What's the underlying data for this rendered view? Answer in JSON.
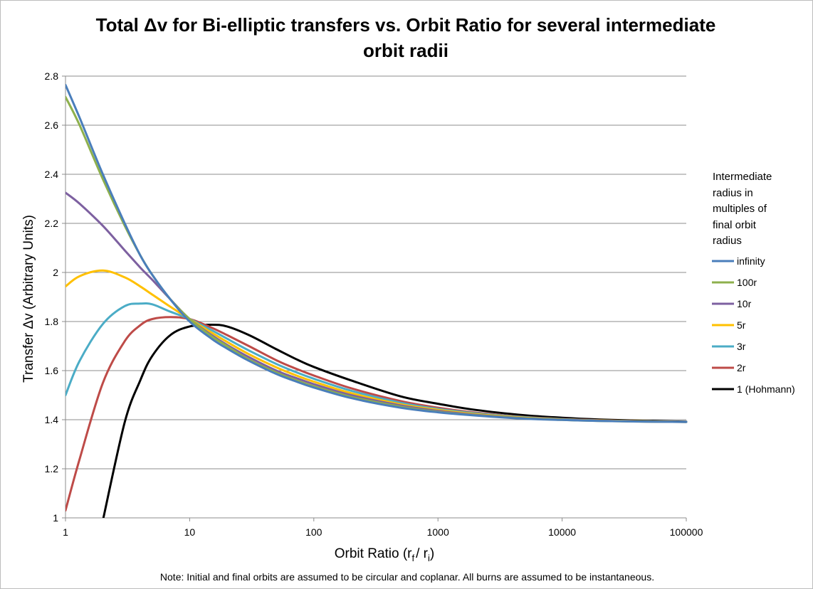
{
  "chart_data": {
    "type": "line",
    "title": "Total Δv for Bi-elliptic transfers vs. Orbit Ratio for several intermediate orbit radii",
    "title_lines": [
      "Total Δv for Bi-elliptic transfers vs. Orbit Ratio for several intermediate",
      "orbit radii"
    ],
    "xlabel": "Orbit Ratio (r_f / r_i)",
    "xlabel_parts": {
      "main": "Orbit Ratio (r",
      "sub1": "f",
      "mid": "/ r",
      "sub2": "i",
      "end": ")"
    },
    "ylabel": "Transfer Δv (Arbitrary Units)",
    "x_scale": "log",
    "xlim": [
      1,
      100000
    ],
    "ylim": [
      1,
      2.8
    ],
    "x_ticks": [
      "1",
      "10",
      "100",
      "1000",
      "10000",
      "100000"
    ],
    "y_ticks": [
      "1",
      "1.2",
      "1.4",
      "1.6",
      "1.8",
      "2",
      "2.2",
      "2.4",
      "2.6",
      "2.8"
    ],
    "grid": "horizontal",
    "legend_title_lines": [
      "Intermediate",
      "radius in",
      "multiples of",
      "final orbit",
      "radius"
    ],
    "legend_position": "right",
    "x_samples": [
      1,
      1.3,
      2,
      3,
      4,
      5,
      7,
      10,
      15,
      20,
      30,
      50,
      70,
      100,
      200,
      500,
      1000,
      2000,
      5000,
      10000,
      20000,
      50000,
      100000
    ],
    "series": [
      {
        "name": "infinity",
        "color": "#4a7ebb",
        "values": [
          2.764,
          2.63,
          2.4,
          2.2,
          2.07,
          1.99,
          1.89,
          1.8,
          1.73,
          1.69,
          1.64,
          1.586,
          1.558,
          1.531,
          1.488,
          1.449,
          1.43,
          1.417,
          1.404,
          1.399,
          1.395,
          1.392,
          1.391
        ]
      },
      {
        "name": "100r",
        "color": "#8eb04d",
        "values": [
          2.715,
          2.6,
          2.38,
          2.19,
          2.07,
          1.99,
          1.89,
          1.81,
          1.74,
          1.7,
          1.645,
          1.592,
          1.563,
          1.536,
          1.493,
          1.453,
          1.432,
          1.418,
          1.405,
          1.399,
          1.395,
          1.392,
          1.391
        ]
      },
      {
        "name": "10r",
        "color": "#7d60a0",
        "values": [
          2.325,
          2.28,
          2.19,
          2.09,
          2.02,
          1.97,
          1.89,
          1.81,
          1.745,
          1.705,
          1.655,
          1.6,
          1.572,
          1.545,
          1.5,
          1.458,
          1.436,
          1.42,
          1.406,
          1.4,
          1.396,
          1.392,
          1.391
        ]
      },
      {
        "name": "5r",
        "color": "#ffc000",
        "values": [
          1.943,
          1.985,
          2.008,
          1.98,
          1.943,
          1.91,
          1.86,
          1.81,
          1.755,
          1.717,
          1.667,
          1.613,
          1.583,
          1.555,
          1.508,
          1.463,
          1.44,
          1.423,
          1.408,
          1.401,
          1.397,
          1.393,
          1.391
        ]
      },
      {
        "name": "3r",
        "color": "#4bacc6",
        "values": [
          1.5,
          1.64,
          1.79,
          1.863,
          1.873,
          1.87,
          1.84,
          1.81,
          1.765,
          1.73,
          1.682,
          1.627,
          1.596,
          1.567,
          1.518,
          1.469,
          1.444,
          1.426,
          1.41,
          1.402,
          1.397,
          1.393,
          1.391
        ]
      },
      {
        "name": "2r",
        "color": "#be4b48",
        "values": [
          1.03,
          1.24,
          1.55,
          1.72,
          1.785,
          1.81,
          1.818,
          1.81,
          1.775,
          1.745,
          1.7,
          1.642,
          1.61,
          1.58,
          1.528,
          1.476,
          1.449,
          1.429,
          1.411,
          1.403,
          1.398,
          1.393,
          1.391
        ]
      },
      {
        "name": "1 (Hohmann)",
        "color": "#000000",
        "values": [
          null,
          null,
          0.99,
          1.39,
          1.56,
          1.66,
          1.745,
          1.78,
          1.787,
          1.78,
          1.745,
          1.687,
          1.65,
          1.615,
          1.56,
          1.495,
          1.465,
          1.44,
          1.418,
          1.408,
          1.401,
          1.395,
          1.392
        ]
      }
    ],
    "note": "Note: Initial and final orbits are assumed to be circular and coplanar. All burns are assumed to be instantaneous."
  }
}
